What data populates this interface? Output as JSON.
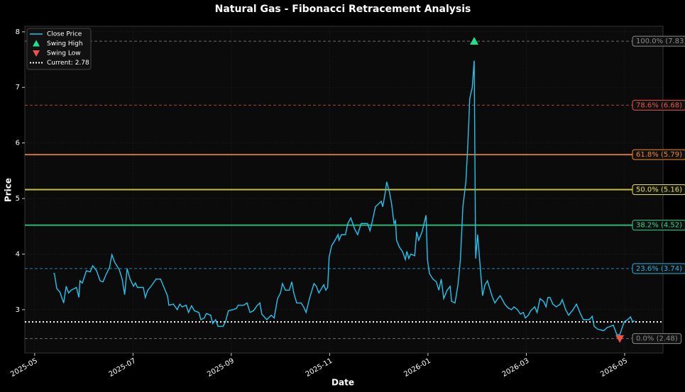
{
  "chart_data": {
    "type": "line",
    "title": "Natural Gas - Fibonacci Retracement Analysis",
    "xlabel": "Date",
    "ylabel": "Price",
    "xlim": [
      3.8,
      16.78
    ],
    "ylim": [
      2.22,
      8.1
    ],
    "xticks": [
      {
        "value": 4,
        "label": "2025-05"
      },
      {
        "value": 6,
        "label": "2025-07"
      },
      {
        "value": 8,
        "label": "2025-09"
      },
      {
        "value": 10,
        "label": "2025-11"
      },
      {
        "value": 12,
        "label": "2026-01"
      },
      {
        "value": 14,
        "label": "2026-03"
      },
      {
        "value": 16,
        "label": "2026-05"
      }
    ],
    "yticks": [
      3,
      4,
      5,
      6,
      7,
      8
    ],
    "grid": true,
    "legend": "upper left",
    "x": [
      4.38,
      4.4,
      4.45,
      4.51,
      4.59,
      4.64,
      4.69,
      4.74,
      4.85,
      4.9,
      4.92,
      4.97,
      5.05,
      5.13,
      5.18,
      5.26,
      5.33,
      5.39,
      5.46,
      5.52,
      5.57,
      5.63,
      5.72,
      5.78,
      5.83,
      5.88,
      5.94,
      6.01,
      6.05,
      6.09,
      6.21,
      6.25,
      6.3,
      6.35,
      6.47,
      6.56,
      6.63,
      6.7,
      6.73,
      6.82,
      6.9,
      6.95,
      7.0,
      7.08,
      7.13,
      7.19,
      7.25,
      7.34,
      7.38,
      7.45,
      7.49,
      7.58,
      7.62,
      7.68,
      7.73,
      7.83,
      7.88,
      7.94,
      8.03,
      8.1,
      8.14,
      8.25,
      8.32,
      8.38,
      8.45,
      8.53,
      8.58,
      8.62,
      8.72,
      8.81,
      8.87,
      8.94,
      9.0,
      9.04,
      9.1,
      9.18,
      9.23,
      9.27,
      9.33,
      9.42,
      9.47,
      9.52,
      9.59,
      9.68,
      9.73,
      9.78,
      9.88,
      9.92,
      9.96,
      9.99,
      10.04,
      10.11,
      10.17,
      10.19,
      10.24,
      10.32,
      10.37,
      10.43,
      10.51,
      10.57,
      10.64,
      10.69,
      10.77,
      10.82,
      10.87,
      10.93,
      10.99,
      11.05,
      11.08,
      11.12,
      11.16,
      11.22,
      11.26,
      11.31,
      11.34,
      11.36,
      11.42,
      11.48,
      11.54,
      11.57,
      11.61,
      11.65,
      11.73,
      11.77,
      11.81,
      11.88,
      11.96,
      11.99,
      12.03,
      12.1,
      12.17,
      12.22,
      12.27,
      12.32,
      12.39,
      12.45,
      12.48,
      12.55,
      12.61,
      12.66,
      12.71,
      12.77,
      12.81,
      12.85,
      12.9,
      12.94,
      12.97,
      13.01,
      13.05,
      13.11,
      13.16,
      13.21,
      13.3,
      13.36,
      13.42,
      13.47,
      13.56,
      13.63,
      13.7,
      13.75,
      13.82,
      13.88,
      13.94,
      13.98,
      14.04,
      14.09,
      14.17,
      14.22,
      14.28,
      14.35,
      14.4,
      14.44,
      14.48,
      14.54,
      14.61,
      14.69,
      14.73,
      14.8,
      14.86,
      14.95,
      15.02,
      15.09,
      15.16,
      15.28,
      15.34,
      15.38,
      15.45,
      15.57,
      15.65,
      15.71,
      15.77,
      15.84,
      15.9,
      15.94,
      15.99,
      16.06,
      16.12,
      16.16,
      16.2
    ],
    "series": [
      {
        "name": "Close Price",
        "color": "#22c4ee",
        "values": [
          3.65,
          3.65,
          3.38,
          3.32,
          3.12,
          3.42,
          3.3,
          3.35,
          3.4,
          3.22,
          3.52,
          3.48,
          3.7,
          3.68,
          3.79,
          3.7,
          3.52,
          3.5,
          3.65,
          3.75,
          3.99,
          3.85,
          3.72,
          3.55,
          3.27,
          3.74,
          3.55,
          3.42,
          3.48,
          3.4,
          3.4,
          3.22,
          3.35,
          3.4,
          3.55,
          3.55,
          3.4,
          3.25,
          3.08,
          3.1,
          3.0,
          3.1,
          3.05,
          3.08,
          2.95,
          3.07,
          2.98,
          2.95,
          2.82,
          2.85,
          2.93,
          2.9,
          2.75,
          2.82,
          2.7,
          2.7,
          2.78,
          2.98,
          3.0,
          3.02,
          3.08,
          3.08,
          3.12,
          2.95,
          2.98,
          3.08,
          3.12,
          2.92,
          2.82,
          2.9,
          2.85,
          3.2,
          3.3,
          3.47,
          3.35,
          3.35,
          3.5,
          3.3,
          3.12,
          3.12,
          3.05,
          2.95,
          3.2,
          3.47,
          3.42,
          3.3,
          3.45,
          3.35,
          3.4,
          3.95,
          4.15,
          4.25,
          4.35,
          4.25,
          4.35,
          4.35,
          4.55,
          4.65,
          4.45,
          4.35,
          4.55,
          4.55,
          4.55,
          4.42,
          4.6,
          4.85,
          4.9,
          4.95,
          4.85,
          5.05,
          5.3,
          5.1,
          4.9,
          4.55,
          4.6,
          4.25,
          4.12,
          4.05,
          3.9,
          4.05,
          3.92,
          4.0,
          3.97,
          4.4,
          4.25,
          4.4,
          4.7,
          3.9,
          3.65,
          3.55,
          3.5,
          3.35,
          3.55,
          3.2,
          3.35,
          3.42,
          3.15,
          3.12,
          3.45,
          3.9,
          4.85,
          5.3,
          5.95,
          6.8,
          7.0,
          7.48,
          3.92,
          4.35,
          3.9,
          3.25,
          3.45,
          3.52,
          3.25,
          3.12,
          3.2,
          3.25,
          3.1,
          3.03,
          3.0,
          3.05,
          3.0,
          2.92,
          2.95,
          2.85,
          2.9,
          2.98,
          3.05,
          2.95,
          3.2,
          3.15,
          3.05,
          3.22,
          3.22,
          3.1,
          3.05,
          3.1,
          3.18,
          3.0,
          2.9,
          3.0,
          3.1,
          2.95,
          2.82,
          2.82,
          2.88,
          2.7,
          2.65,
          2.62,
          2.68,
          2.7,
          2.72,
          2.55,
          2.55,
          2.65,
          2.78,
          2.82,
          2.87,
          2.78,
          2.8
        ]
      }
    ],
    "markers": [
      {
        "name": "Swing High",
        "x": 12.94,
        "value": 7.83,
        "color": "#1de38a",
        "shape": "triangle-up"
      },
      {
        "name": "Swing Low",
        "x": 15.9,
        "value": 2.48,
        "color": "#f0524a",
        "shape": "triangle-down"
      }
    ],
    "current": {
      "name": "Current: 2.78",
      "value": 2.78,
      "color": "#ffffff"
    },
    "levels": [
      {
        "value": 7.83,
        "label": "100.0% (7.83)",
        "color": "#8c8c8c",
        "style": "dashed"
      },
      {
        "value": 6.68,
        "label": "78.6% (6.68)",
        "color": "#e8534a",
        "style": "dashed"
      },
      {
        "value": 5.79,
        "label": "61.8% (5.79)",
        "color": "#f08a30",
        "style": "solid"
      },
      {
        "value": 5.16,
        "label": "50.0% (5.16)",
        "color": "#e8e048",
        "style": "solid"
      },
      {
        "value": 4.52,
        "label": "38.2% (4.52)",
        "color": "#2ed588",
        "style": "solid"
      },
      {
        "value": 3.74,
        "label": "23.6% (3.74)",
        "color": "#2bb0e0",
        "style": "dashed"
      },
      {
        "value": 2.48,
        "label": "0.0% (2.48)",
        "color": "#8c8c8c",
        "style": "dashed"
      }
    ]
  }
}
